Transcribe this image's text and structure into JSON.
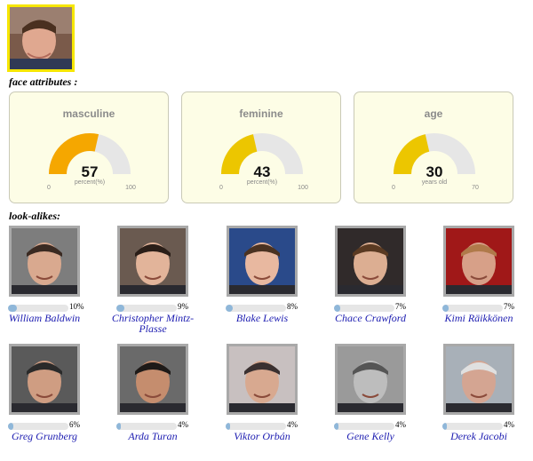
{
  "section_labels": {
    "face_attributes": "face attributes :",
    "look_alikes": "look-alikes:"
  },
  "gauges": [
    {
      "title": "masculine",
      "value": 57,
      "unit": "percent(%)",
      "min": 0,
      "max": 100,
      "color": "#f5a700"
    },
    {
      "title": "feminine",
      "value": 43,
      "unit": "percent(%)",
      "min": 0,
      "max": 100,
      "color": "#ecc600"
    },
    {
      "title": "age",
      "value": 30,
      "unit": "years old",
      "min": 0,
      "max": 70,
      "color": "#ecc600"
    }
  ],
  "colors": {
    "gauge_track": "#e6e6e6",
    "bar_fill": "#8fb7d9",
    "bar_track": "#e6e6e6",
    "link": "#1b1bb0",
    "highlight": "#f6e600"
  },
  "lookalikes": [
    {
      "name": "William Baldwin",
      "percent": "10%",
      "value": 10
    },
    {
      "name": "Christopher Mintz-Plasse",
      "percent": "9%",
      "value": 9
    },
    {
      "name": "Blake Lewis",
      "percent": "8%",
      "value": 8
    },
    {
      "name": "Chace Crawford",
      "percent": "7%",
      "value": 7
    },
    {
      "name": "Kimi Räikkönen",
      "percent": "7%",
      "value": 7
    },
    {
      "name": "Greg Grunberg",
      "percent": "6%",
      "value": 6
    },
    {
      "name": "Arda Turan",
      "percent": "4%",
      "value": 4
    },
    {
      "name": "Viktor Orbán",
      "percent": "4%",
      "value": 4
    },
    {
      "name": "Gene Kelly",
      "percent": "4%",
      "value": 4
    },
    {
      "name": "Derek Jacobi",
      "percent": "4%",
      "value": 4
    }
  ]
}
